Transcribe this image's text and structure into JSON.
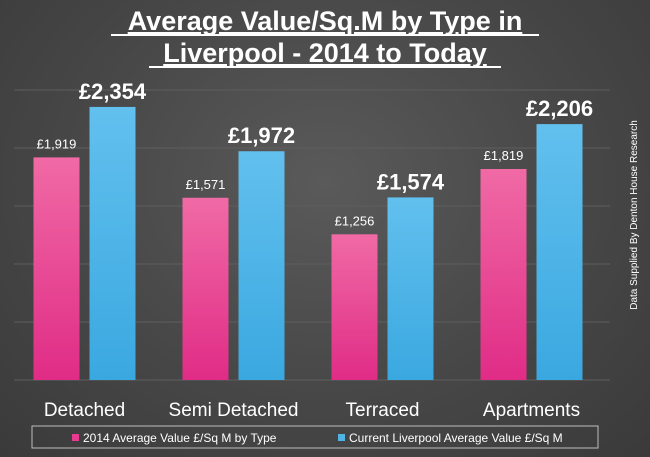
{
  "chart_data": {
    "type": "bar",
    "title_lines": [
      "Average Value/Sq.M by Type in",
      "Liverpool - 2014 to Today"
    ],
    "categories": [
      "Detached",
      "Semi Detached",
      "Terraced",
      "Apartments"
    ],
    "series": [
      {
        "name": "2014 Average Value £/Sq M by Type",
        "values": [
          1919,
          1571,
          1256,
          1819
        ],
        "labels": [
          "£1,919",
          "£1,571",
          "£1,256",
          "£1,819"
        ],
        "color": "#e83a8f"
      },
      {
        "name": "Current Liverpool Average Value £/Sq M",
        "values": [
          2354,
          1972,
          1574,
          2206
        ],
        "labels": [
          "£2,354",
          "£1,972",
          "£1,574",
          "£2,206"
        ],
        "color": "#4fb3e6"
      }
    ],
    "ylim": [
      0,
      2500
    ],
    "grid": true,
    "legend_position": "bottom",
    "source_note": "Data Supplied By Denton House Research"
  }
}
